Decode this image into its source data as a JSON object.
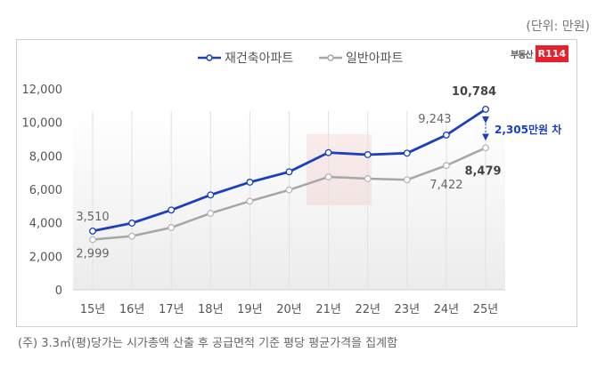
{
  "unit_label": "(단위: 만원)",
  "logo_text": "부동산R114",
  "logo_part1": "부동산",
  "logo_part2": "R114",
  "footnote": "(주) 3.3㎡(평)당가는 시가총액 산출 후 공급면적 기준 평당 평균가격을 집계함",
  "chart_data": {
    "type": "line",
    "categories": [
      "15년",
      "16년",
      "17년",
      "18년",
      "19년",
      "20년",
      "21년",
      "22년",
      "23년",
      "24년",
      "25년"
    ],
    "ylim": [
      0,
      12000
    ],
    "yticks": [
      "0",
      "2,000",
      "4,000",
      "6,000",
      "8,000",
      "10,000",
      "12,000"
    ],
    "grid": "vertical",
    "legend": "top-center",
    "series": [
      {
        "name": "재건축아파트",
        "color": "#1a3fbf",
        "values": [
          3510,
          3983,
          4763,
          5666,
          6426,
          7046,
          8195,
          8072,
          8160,
          9243,
          10784
        ]
      },
      {
        "name": "일반아파트",
        "color": "#a6a6a6",
        "values": [
          2999,
          3204,
          3717,
          4567,
          5293,
          5966,
          6745,
          6638,
          6568,
          7422,
          8479
        ]
      }
    ],
    "data_labels": [
      {
        "series": 0,
        "index": 0,
        "text": "3,510"
      },
      {
        "series": 0,
        "index": 9,
        "text": "9,243"
      },
      {
        "series": 0,
        "index": 10,
        "text": "10,784"
      },
      {
        "series": 1,
        "index": 0,
        "text": "2,999"
      },
      {
        "series": 1,
        "index": 9,
        "text": "7,422"
      },
      {
        "series": 1,
        "index": 10,
        "text": "8,479"
      }
    ],
    "annotation": "2,305만원 차",
    "annotation_color": "#1a3fbf"
  }
}
